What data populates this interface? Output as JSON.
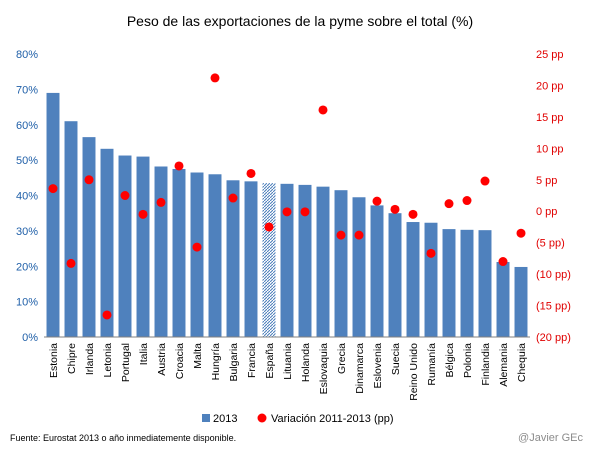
{
  "chart_data": {
    "type": "bar",
    "title": "Peso de las exportaciones de la pyme sobre el total (%)",
    "categories": [
      "Estonia",
      "Chipre",
      "Irlanda",
      "Letonia",
      "Portugal",
      "Italia",
      "Austria",
      "Croacia",
      "Malta",
      "Hungría",
      "Bulgaria",
      "Francia",
      "España",
      "Lituania",
      "Holanda",
      "Eslovaquia",
      "Grecia",
      "Dinamarca",
      "Eslovenia",
      "Suecia",
      "Reino Unido",
      "Rumanía",
      "Bélgica",
      "Polonia",
      "Finlandia",
      "Alemania",
      "Chequia"
    ],
    "highlight_category": "España",
    "series": [
      {
        "name": "2013",
        "type": "bar",
        "axis": "left",
        "color": "#4f81bd",
        "values": [
          69,
          61,
          56.5,
          53.2,
          51.3,
          51,
          48.2,
          47.5,
          46.5,
          46,
          44.3,
          44,
          43.5,
          43.3,
          43,
          42.5,
          41.5,
          39.5,
          37.2,
          35,
          32.5,
          32.3,
          30.5,
          30.3,
          30.2,
          21.2,
          19.8
        ]
      },
      {
        "name": "Variación 2011-2013 (pp)",
        "type": "scatter",
        "axis": "right",
        "color": "#ff0000",
        "values": [
          3.6,
          -8.3,
          5,
          -16.5,
          2.5,
          -0.5,
          1.4,
          7.2,
          -5.7,
          21.2,
          2.1,
          6,
          -2.5,
          -0.1,
          -0.1,
          16.1,
          -3.8,
          -3.8,
          1.6,
          0.3,
          -0.5,
          -6.7,
          1.2,
          1.7,
          4.8,
          -8,
          -3.5
        ]
      }
    ],
    "left_axis": {
      "ylim": [
        0,
        80
      ],
      "step": 10,
      "tick_labels": [
        "0%",
        "10%",
        "20%",
        "30%",
        "40%",
        "50%",
        "60%",
        "70%",
        "80%"
      ],
      "color": "#1f5fa8"
    },
    "right_axis": {
      "ylim": [
        -20,
        25
      ],
      "step": 5,
      "tick_labels": [
        "(20 pp)",
        "(15 pp)",
        "(10 pp)",
        "(5 pp)",
        "0 pp",
        "5 pp",
        "10 pp",
        "15 pp",
        "20 pp",
        "25 pp"
      ],
      "color": "#e00000"
    },
    "xlabel": "",
    "ylabel": "",
    "grid": false,
    "legend": {
      "position": "bottom",
      "entries": [
        "2013",
        "Variación 2011-2013 (pp)"
      ]
    }
  },
  "footer": {
    "source": "Fuente: Eurostat 2013 o año inmediatemente disponible.",
    "credit": "@Javier GEc"
  }
}
